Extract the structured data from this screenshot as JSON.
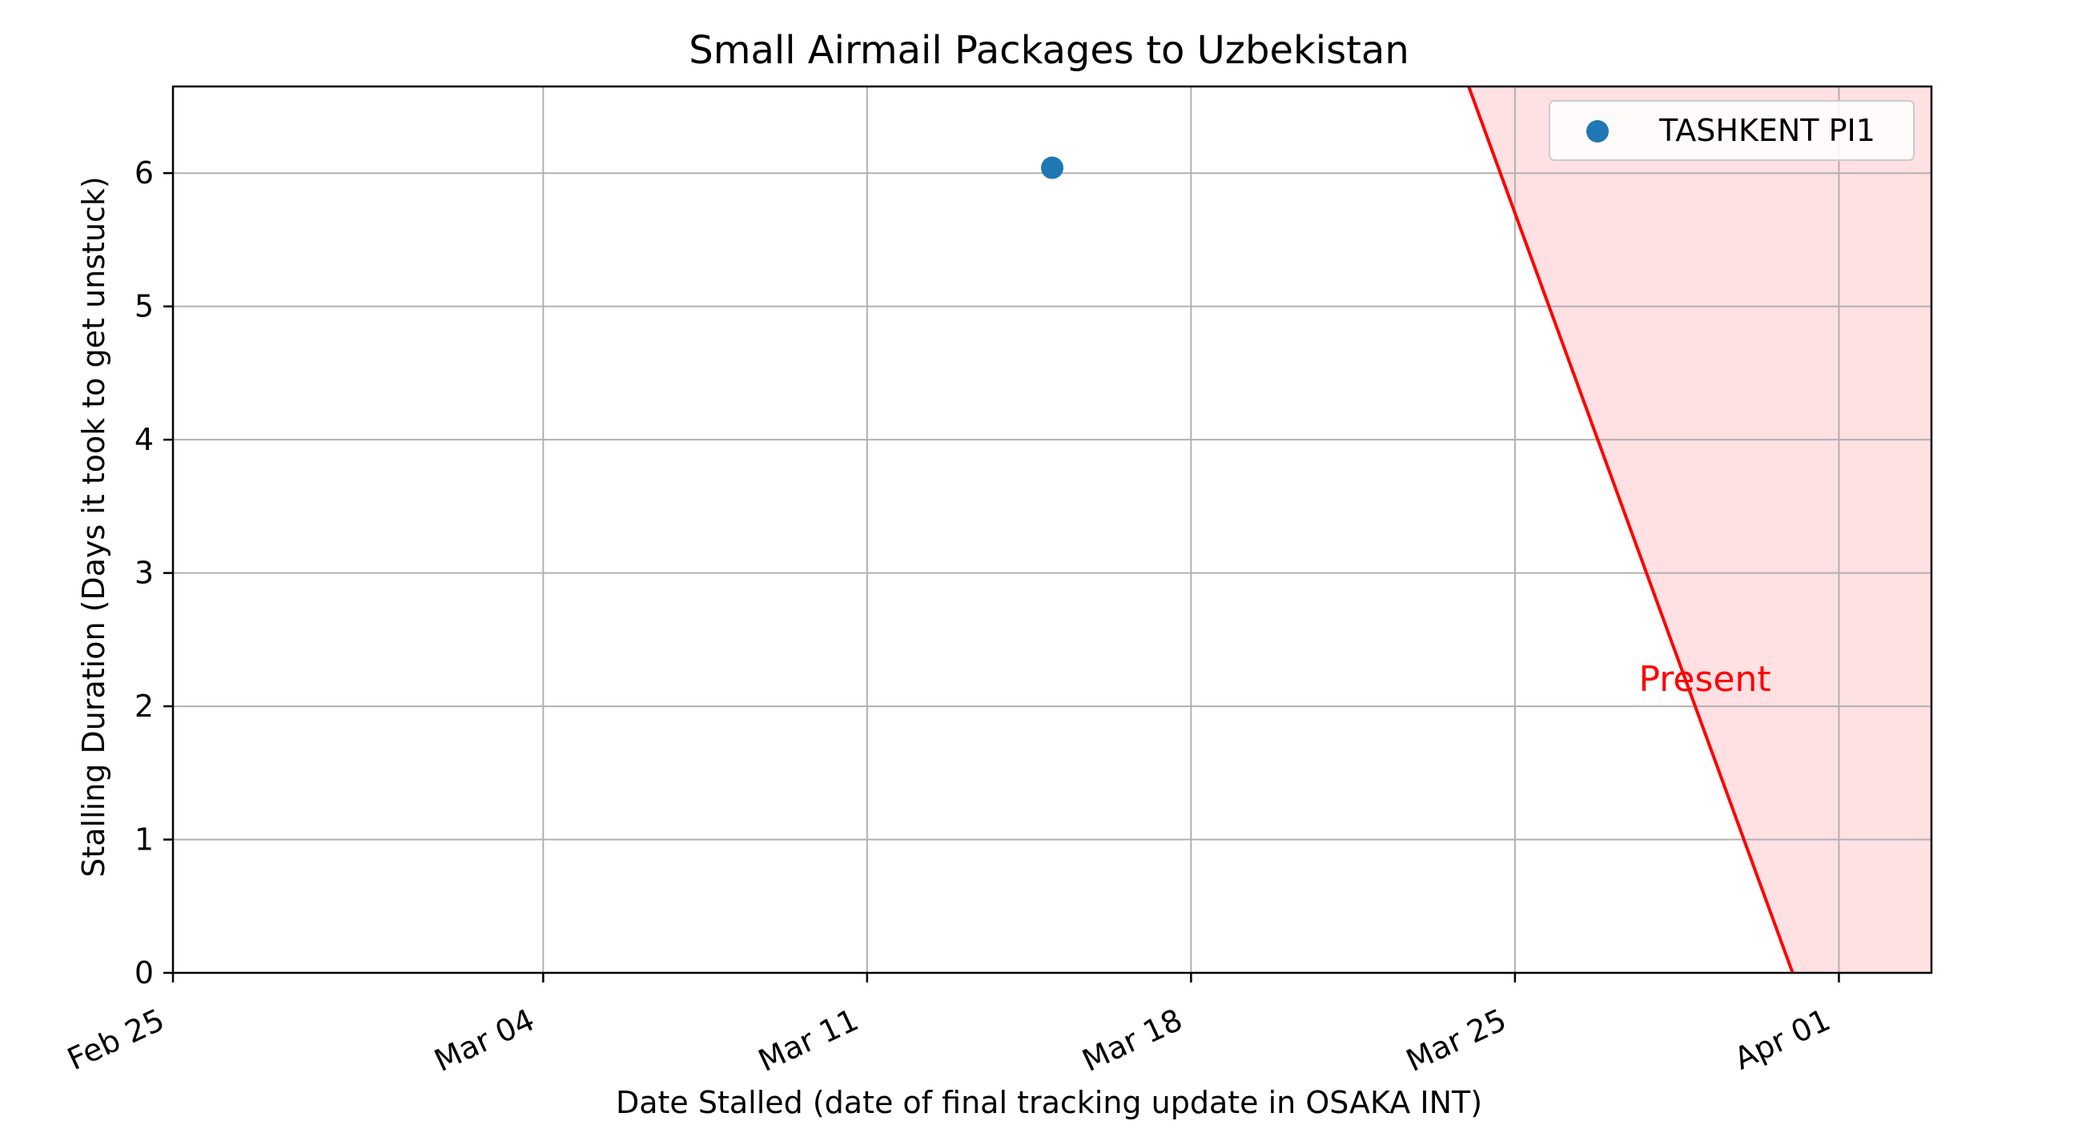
{
  "chart_data": {
    "type": "scatter",
    "title": "Small Airmail Packages to Uzbekistan",
    "xlabel": "Date Stalled (date of final tracking update in OSAKA INT)",
    "ylabel": "Stalling Duration (Days it took to get unstuck)",
    "x_axis_type": "date",
    "xlim": [
      "2024-02-25",
      "2024-04-03"
    ],
    "ylim": [
      0,
      6.65
    ],
    "x_ticks": [
      {
        "date": "2024-02-25",
        "label": "Feb 25"
      },
      {
        "date": "2024-03-04",
        "label": "Mar 04"
      },
      {
        "date": "2024-03-11",
        "label": "Mar 11"
      },
      {
        "date": "2024-03-18",
        "label": "Mar 18"
      },
      {
        "date": "2024-03-25",
        "label": "Mar 25"
      },
      {
        "date": "2024-04-01",
        "label": "Apr 01"
      }
    ],
    "y_ticks": [
      0,
      1,
      2,
      3,
      4,
      5,
      6
    ],
    "grid": true,
    "legend_position": "top-right",
    "series": [
      {
        "name": "TASHKENT PI1",
        "color": "#1f77b4",
        "points": [
          {
            "x": "2024-03-15",
            "y": 6.04
          }
        ]
      }
    ],
    "present_line": {
      "label": "Present",
      "color": "#ff0000",
      "fill_color": "#ffe0e3",
      "points": [
        {
          "x": "2024-03-24",
          "y": 6.65
        },
        {
          "x": "2024-03-31",
          "y": 0
        }
      ]
    }
  }
}
